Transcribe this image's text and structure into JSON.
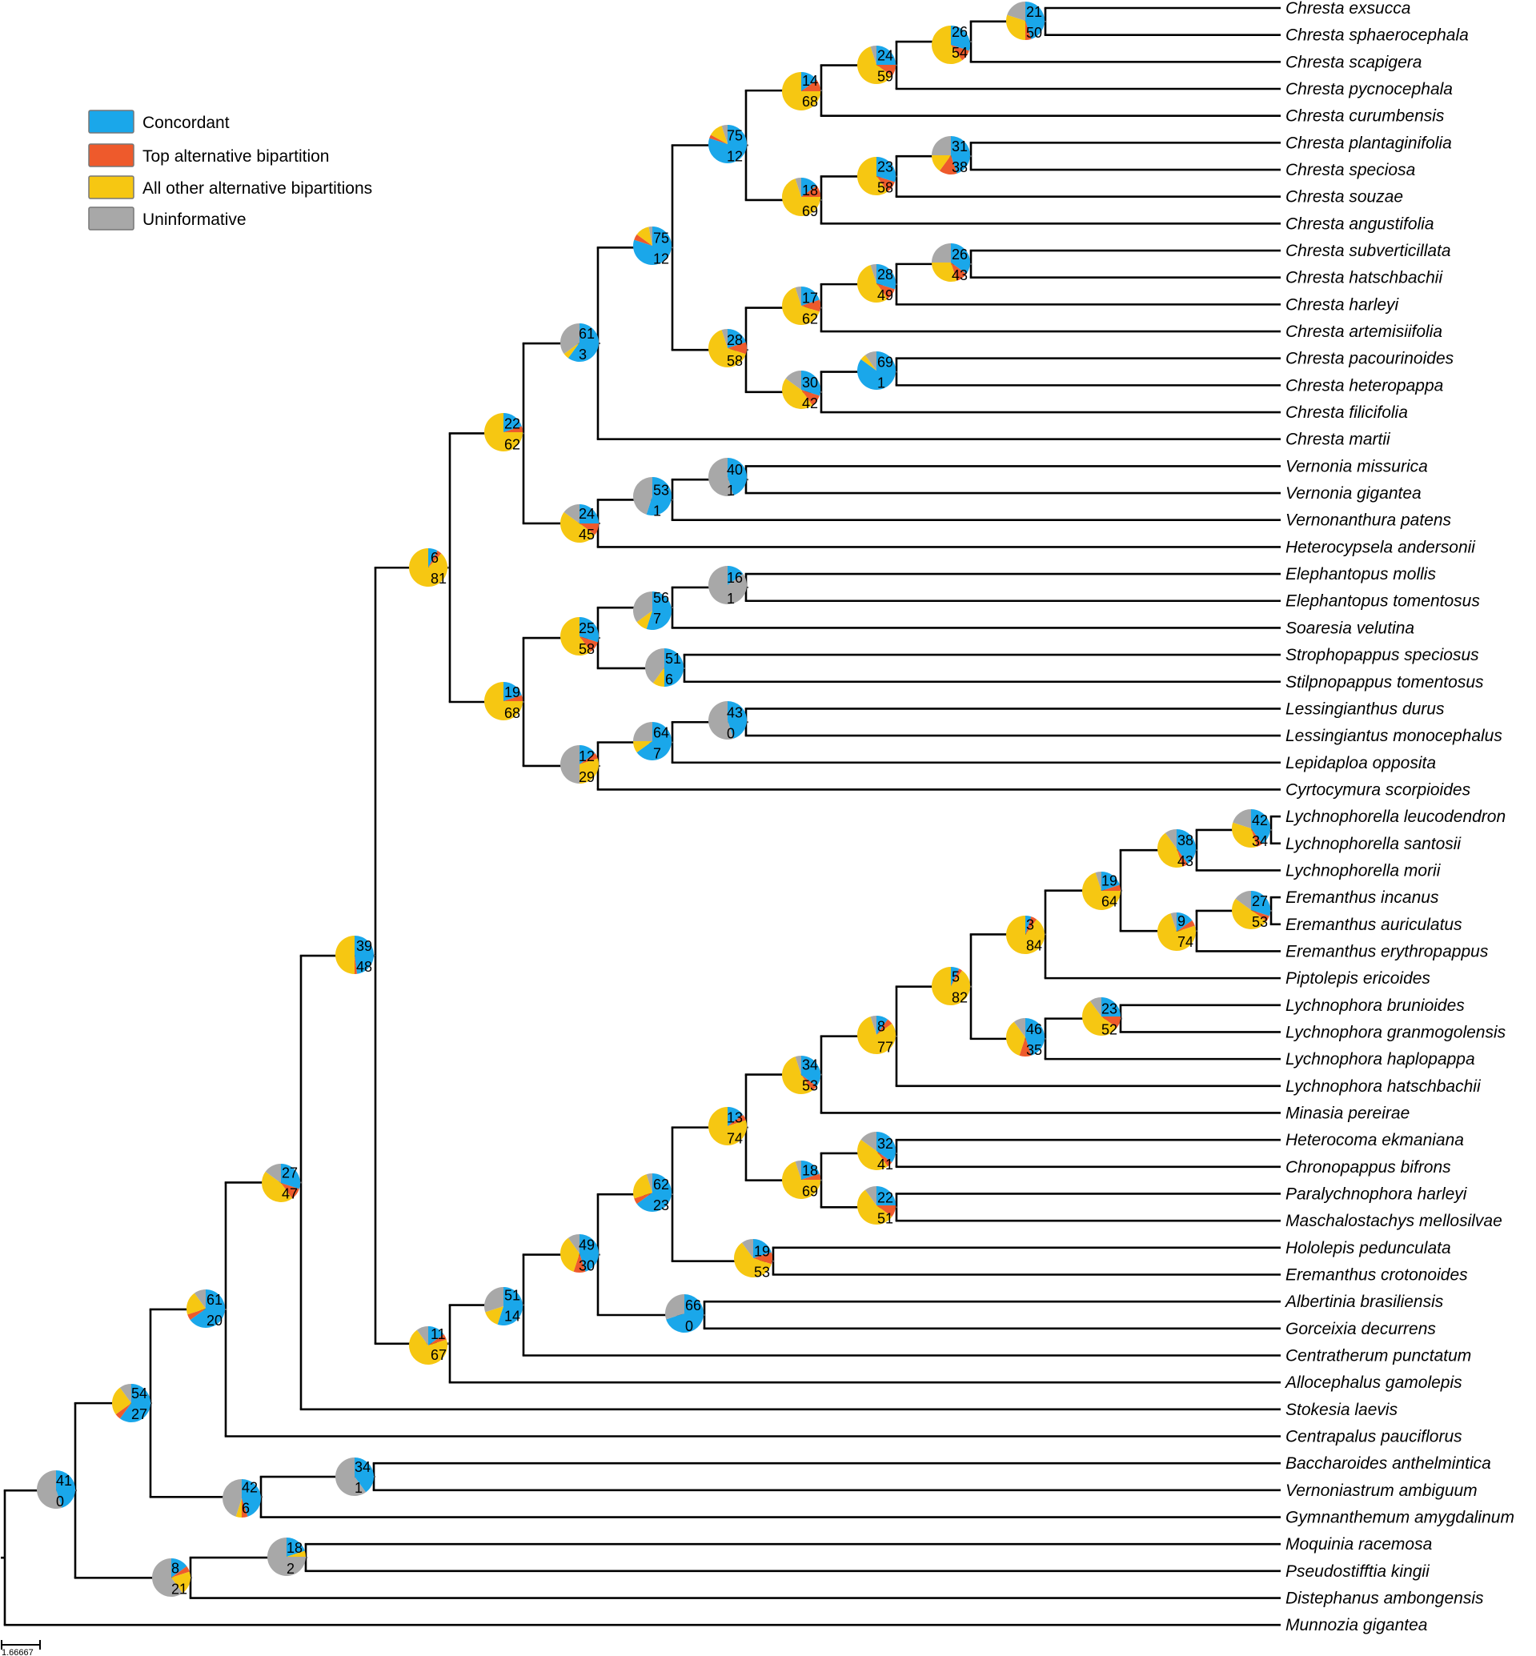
{
  "legend": [
    {
      "label": "Concordant",
      "color": "#1aa7ea"
    },
    {
      "label": "Top alternative bipartition",
      "color": "#ee5a2c"
    },
    {
      "label": "All other alternative bipartitions",
      "color": "#f6c712"
    },
    {
      "label": "Uninformative",
      "color": "#a8a8a8"
    }
  ],
  "scale_bar_label": "1.66667",
  "taxa": [
    "Chresta exsucca",
    "Chresta sphaerocephala",
    "Chresta scapigera",
    "Chresta pycnocephala",
    "Chresta curumbensis",
    "Chresta plantaginifolia",
    "Chresta speciosa",
    "Chresta souzae",
    "Chresta angustifolia",
    "Chresta subverticillata",
    "Chresta hatschbachii",
    "Chresta harleyi",
    "Chresta artemisiifolia",
    "Chresta pacourinoides",
    "Chresta heteropappa",
    "Chresta filicifolia",
    "Chresta martii",
    "Vernonia missurica",
    "Vernonia gigantea",
    "Vernonanthura patens",
    "Heterocypsela andersonii",
    "Elephantopus mollis",
    "Elephantopus tomentosus",
    "Soaresia velutina",
    "Strophopappus speciosus",
    "Stilpnopappus tomentosus",
    "Lessingianthus durus",
    "Lessingiantus monocephalus",
    "Lepidaploa opposita",
    "Cyrtocymura scorpioides",
    "Lychnophorella leucodendron",
    "Lychnophorella santosii",
    "Lychnophorella morii",
    "Eremanthus incanus",
    "Eremanthus auriculatus",
    "Eremanthus erythropappus",
    "Piptolepis ericoides",
    "Lychnophora brunioides",
    "Lychnophora granmogolensis",
    "Lychnophora haplopappa",
    "Lychnophora hatschbachii",
    "Minasia pereirae",
    "Heterocoma ekmaniana",
    "Chronopappus bifrons",
    "Paralychnophora harleyi",
    "Maschalostachys mellosilvae",
    "Hololepis pedunculata",
    "Eremanthus crotonoides",
    "Albertinia brasiliensis",
    "Gorceixia decurrens",
    "Centratherum punctatum",
    "Allocephalus gamolepis",
    "Stokesia laevis",
    "Centrapalus pauciflorus",
    "Baccharoides anthelmintica",
    "Vernoniastrum ambiguum",
    "Gymnanthemum amygdalinum",
    "Moquinia racemosa",
    "Pseudostifftia kingii",
    "Distephanus ambongensis",
    "Munnozia gigantea"
  ],
  "nodes": [
    {
      "id": "n_exs_sph",
      "top": "21",
      "bottom": "50",
      "pie": [
        45,
        5,
        30,
        20
      ]
    },
    {
      "id": "n_exs_scap",
      "top": "26",
      "bottom": "54",
      "pie": [
        30,
        10,
        60,
        0
      ]
    },
    {
      "id": "n_exs_pyc",
      "top": "24",
      "bottom": "59",
      "pie": [
        25,
        10,
        60,
        5
      ]
    },
    {
      "id": "n_exs_cur",
      "top": "14",
      "bottom": "68",
      "pie": [
        15,
        10,
        75,
        0
      ]
    },
    {
      "id": "n_chresta_big",
      "top": "75",
      "bottom": "12",
      "pie": [
        80,
        3,
        12,
        5
      ]
    },
    {
      "id": "n_plan_spec",
      "top": "31",
      "bottom": "38",
      "pie": [
        45,
        15,
        15,
        25
      ]
    },
    {
      "id": "n_plan_sou",
      "top": "23",
      "bottom": "58",
      "pie": [
        30,
        10,
        60,
        0
      ]
    },
    {
      "id": "n_plan_ang",
      "top": "18",
      "bottom": "69",
      "pie": [
        15,
        10,
        70,
        5
      ]
    },
    {
      "id": "n_chresta_all",
      "top": "75",
      "bottom": "12",
      "pie": [
        80,
        5,
        12,
        3
      ]
    },
    {
      "id": "n_sub_hat",
      "top": "26",
      "bottom": "43",
      "pie": [
        35,
        10,
        30,
        25
      ]
    },
    {
      "id": "n_sub_harl",
      "top": "28",
      "bottom": "49",
      "pie": [
        30,
        10,
        55,
        5
      ]
    },
    {
      "id": "n_sub_art",
      "top": "17",
      "bottom": "62",
      "pie": [
        20,
        10,
        65,
        5
      ]
    },
    {
      "id": "n_pac_het",
      "top": "69",
      "bottom": "1",
      "pie": [
        85,
        0,
        5,
        10
      ]
    },
    {
      "id": "n_pac_fil",
      "top": "30",
      "bottom": "42",
      "pie": [
        30,
        10,
        45,
        15
      ]
    },
    {
      "id": "n_sub_pac",
      "top": "28",
      "bottom": "58",
      "pie": [
        20,
        10,
        65,
        5
      ]
    },
    {
      "id": "n_chresta_mar",
      "top": "61",
      "bottom": "3",
      "pie": [
        60,
        0,
        5,
        35
      ]
    },
    {
      "id": "n_ver_mis_gig",
      "top": "40",
      "bottom": "1",
      "pie": [
        45,
        0,
        0,
        55
      ]
    },
    {
      "id": "n_ver_pat",
      "top": "53",
      "bottom": "1",
      "pie": [
        55,
        0,
        0,
        45
      ]
    },
    {
      "id": "n_ver_het",
      "top": "24",
      "bottom": "45",
      "pie": [
        25,
        10,
        50,
        15
      ]
    },
    {
      "id": "n_chresta_ver",
      "top": "22",
      "bottom": "62",
      "pie": [
        20,
        5,
        75,
        0
      ]
    },
    {
      "id": "n_ele_mol_tom",
      "top": "16",
      "bottom": "1",
      "pie": [
        15,
        0,
        0,
        85
      ]
    },
    {
      "id": "n_ele_soa",
      "top": "56",
      "bottom": "7",
      "pie": [
        55,
        0,
        10,
        35
      ]
    },
    {
      "id": "n_stro_stil",
      "top": "51",
      "bottom": "6",
      "pie": [
        50,
        0,
        10,
        40
      ]
    },
    {
      "id": "n_ele_stro",
      "top": "25",
      "bottom": "58",
      "pie": [
        30,
        10,
        60,
        0
      ]
    },
    {
      "id": "n_les_dur_mon",
      "top": "43",
      "bottom": "0",
      "pie": [
        45,
        0,
        0,
        55
      ]
    },
    {
      "id": "n_les_lep",
      "top": "64",
      "bottom": "7",
      "pie": [
        65,
        0,
        10,
        25
      ]
    },
    {
      "id": "n_les_cyr",
      "top": "12",
      "bottom": "29",
      "pie": [
        15,
        5,
        30,
        50
      ]
    },
    {
      "id": "n_ele_les",
      "top": "19",
      "bottom": "68",
      "pie": [
        20,
        5,
        75,
        0
      ]
    },
    {
      "id": "n_big_upper",
      "top": "6",
      "bottom": "81",
      "pie": [
        8,
        4,
        88,
        0
      ]
    },
    {
      "id": "n_lyc_leu_san",
      "top": "42",
      "bottom": "34",
      "pie": [
        40,
        5,
        35,
        20
      ]
    },
    {
      "id": "n_lyc_mor",
      "top": "38",
      "bottom": "43",
      "pie": [
        40,
        5,
        45,
        10
      ]
    },
    {
      "id": "n_ere_inc_aur",
      "top": "27",
      "bottom": "53",
      "pie": [
        30,
        5,
        50,
        15
      ]
    },
    {
      "id": "n_ere_ery",
      "top": "9",
      "bottom": "74",
      "pie": [
        15,
        5,
        75,
        5
      ]
    },
    {
      "id": "n_lycella_ere",
      "top": "19",
      "bottom": "64",
      "pie": [
        20,
        5,
        70,
        5
      ]
    },
    {
      "id": "n_lyc_pip",
      "top": "3",
      "bottom": "84",
      "pie": [
        5,
        5,
        90,
        0
      ]
    },
    {
      "id": "n_lyc_bru_gra",
      "top": "23",
      "bottom": "52",
      "pie": [
        25,
        10,
        55,
        10
      ]
    },
    {
      "id": "n_lyc_hap",
      "top": "46",
      "bottom": "35",
      "pie": [
        45,
        10,
        35,
        10
      ]
    },
    {
      "id": "n_lyc_big",
      "top": "5",
      "bottom": "82",
      "pie": [
        7,
        3,
        90,
        0
      ]
    },
    {
      "id": "n_lyc_hatsch",
      "top": "8",
      "bottom": "77",
      "pie": [
        10,
        5,
        80,
        5
      ]
    },
    {
      "id": "n_lyc_min",
      "top": "34",
      "bottom": "53",
      "pie": [
        35,
        5,
        55,
        5
      ]
    },
    {
      "id": "n_het_chr",
      "top": "32",
      "bottom": "41",
      "pie": [
        35,
        5,
        45,
        15
      ]
    },
    {
      "id": "n_par_mas",
      "top": "22",
      "bottom": "51",
      "pie": [
        25,
        10,
        55,
        10
      ]
    },
    {
      "id": "n_het_par",
      "top": "18",
      "bottom": "69",
      "pie": [
        20,
        5,
        70,
        5
      ]
    },
    {
      "id": "n_lyc_het",
      "top": "13",
      "bottom": "74",
      "pie": [
        15,
        5,
        80,
        0
      ]
    },
    {
      "id": "n_hol_ere",
      "top": "19",
      "bottom": "53",
      "pie": [
        20,
        10,
        60,
        10
      ]
    },
    {
      "id": "n_lyc_hol",
      "top": "62",
      "bottom": "23",
      "pie": [
        65,
        5,
        25,
        5
      ]
    },
    {
      "id": "n_alb_gor",
      "top": "66",
      "bottom": "0",
      "pie": [
        70,
        0,
        0,
        30
      ]
    },
    {
      "id": "n_lyc_alb",
      "top": "49",
      "bottom": "30",
      "pie": [
        45,
        10,
        35,
        10
      ]
    },
    {
      "id": "n_lyc_cen",
      "top": "51",
      "bottom": "14",
      "pie": [
        55,
        0,
        15,
        30
      ]
    },
    {
      "id": "n_lower_big",
      "top": "11",
      "bottom": "67",
      "pie": [
        15,
        5,
        70,
        10
      ]
    },
    {
      "id": "n_upper_lower",
      "top": "39",
      "bottom": "48",
      "pie": [
        48,
        2,
        50,
        0
      ]
    },
    {
      "id": "n_stok",
      "top": "27",
      "bottom": "47",
      "pie": [
        30,
        10,
        45,
        15
      ]
    },
    {
      "id": "n_cenp",
      "top": "61",
      "bottom": "20",
      "pie": [
        65,
        5,
        20,
        10
      ]
    },
    {
      "id": "n_bac_ver",
      "top": "34",
      "bottom": "1",
      "pie": [
        40,
        0,
        0,
        60
      ]
    },
    {
      "id": "n_bac_gym",
      "top": "42",
      "bottom": "6",
      "pie": [
        45,
        5,
        5,
        45
      ]
    },
    {
      "id": "n_vernonieae",
      "top": "54",
      "bottom": "27",
      "pie": [
        60,
        5,
        25,
        10
      ]
    },
    {
      "id": "n_moq_pse",
      "top": "18",
      "bottom": "2",
      "pie": [
        20,
        0,
        5,
        75
      ]
    },
    {
      "id": "n_moq_dis",
      "top": "8",
      "bottom": "21",
      "pie": [
        15,
        5,
        20,
        60
      ]
    },
    {
      "id": "n_root",
      "top": "41",
      "bottom": "0",
      "pie": [
        45,
        0,
        0,
        55
      ]
    }
  ]
}
